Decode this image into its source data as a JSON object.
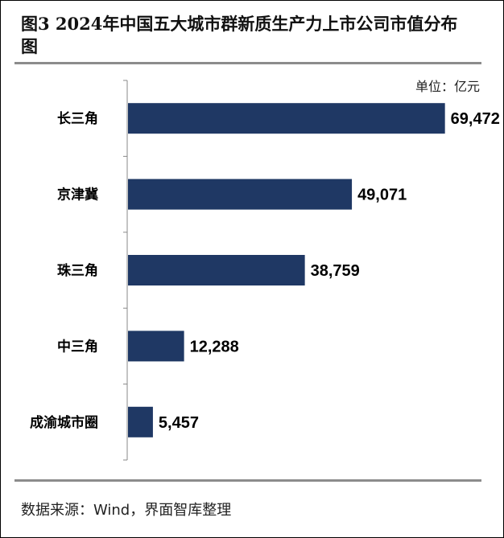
{
  "title": "图3 2024年中国五大城市群新质生产力上市公司市值分布图",
  "unit_label": "单位：亿元",
  "source": "数据来源：Wind，界面智库整理",
  "colors": {
    "bar": "#1f3864",
    "axis": "#888888",
    "text": "#000000"
  },
  "chart_data": {
    "type": "bar",
    "orientation": "horizontal",
    "categories": [
      "长三角",
      "京津冀",
      "珠三角",
      "中三角",
      "成渝城市圈"
    ],
    "values": [
      69472,
      49071,
      38759,
      12288,
      5457
    ],
    "data_labels": [
      "69,472",
      "49,071",
      "38,759",
      "12,288",
      "5,457"
    ],
    "xlim": [
      0,
      75000
    ],
    "grid": false,
    "legend": "none"
  }
}
